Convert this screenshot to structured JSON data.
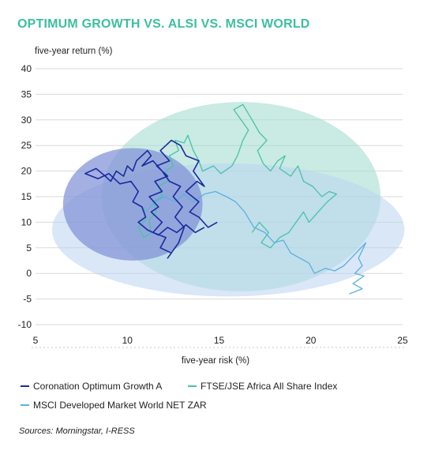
{
  "title": "OPTIMUM GROWTH VS. ALSI VS. MSCI WORLD",
  "source": "Sources: Morningstar, I-RESS",
  "chart_data": {
    "type": "scatter",
    "xlabel": "five-year risk (%)",
    "ylabel": "five-year return (%)",
    "xlim": [
      5,
      25
    ],
    "ylim": [
      -10,
      40
    ],
    "xticks": [
      5,
      10,
      15,
      20,
      25
    ],
    "yticks": [
      -10,
      -5,
      0,
      5,
      10,
      15,
      20,
      25,
      30,
      35,
      40
    ],
    "grid": "horizontal",
    "legend_position": "bottom",
    "series": [
      {
        "name": "Coronation Optimum Growth A",
        "color": "#1a2a9e",
        "ellipse": {
          "cx": 10.3,
          "cy": 13.5,
          "rx": 3.8,
          "ry": 11,
          "fill": "#7f8fd6",
          "opacity": 0.7
        },
        "points": [
          [
            14.9,
            10
          ],
          [
            14.4,
            9
          ],
          [
            13.9,
            11
          ],
          [
            13.4,
            12
          ],
          [
            13.9,
            14
          ],
          [
            13.2,
            16
          ],
          [
            13.8,
            18
          ],
          [
            14.2,
            17
          ],
          [
            13.6,
            20
          ],
          [
            13.9,
            22
          ],
          [
            13.2,
            23
          ],
          [
            12.9,
            25
          ],
          [
            12.4,
            26
          ],
          [
            11.8,
            24
          ],
          [
            12.3,
            22
          ],
          [
            11.6,
            21
          ],
          [
            12.2,
            19
          ],
          [
            11.5,
            18
          ],
          [
            11.9,
            16
          ],
          [
            11.2,
            15
          ],
          [
            11.7,
            13
          ],
          [
            11.3,
            12
          ],
          [
            11.9,
            10
          ],
          [
            11.4,
            8
          ],
          [
            12.1,
            7
          ],
          [
            11.8,
            5
          ],
          [
            12.4,
            4
          ],
          [
            12.2,
            3
          ],
          [
            12.8,
            6
          ],
          [
            13.1,
            9
          ],
          [
            12.6,
            11
          ],
          [
            13,
            13
          ],
          [
            12.5,
            15
          ],
          [
            12.9,
            17
          ],
          [
            12.3,
            18
          ],
          [
            11.9,
            20
          ],
          [
            11.4,
            22
          ],
          [
            10.8,
            21
          ],
          [
            11.3,
            23
          ],
          [
            11.1,
            24
          ],
          [
            10.5,
            22
          ],
          [
            10.3,
            20
          ],
          [
            10,
            21
          ],
          [
            9.8,
            19
          ],
          [
            9.4,
            20
          ],
          [
            9.1,
            18
          ],
          [
            8.8,
            19
          ],
          [
            8.3,
            20.5
          ],
          [
            7.7,
            19.5
          ],
          [
            8.4,
            18.5
          ],
          [
            9,
            19.5
          ],
          [
            9.6,
            17.5
          ],
          [
            10.2,
            18
          ],
          [
            10.6,
            16
          ],
          [
            10.3,
            14
          ],
          [
            10.8,
            13
          ],
          [
            11,
            11
          ],
          [
            10.6,
            10
          ],
          [
            11.1,
            8.5
          ],
          [
            11.7,
            7.5
          ],
          [
            12.2,
            9
          ],
          [
            12.7,
            8
          ],
          [
            13.2,
            9.5
          ],
          [
            13.7,
            8
          ],
          [
            14.2,
            9
          ]
        ]
      },
      {
        "name": "FTSE/JSE Africa All Share Index",
        "color": "#45c4a5",
        "ellipse": {
          "cx": 16.2,
          "cy": 15,
          "rx": 7.6,
          "ry": 18.5,
          "fill": "#a6dcd2",
          "opacity": 0.6
        },
        "points": [
          [
            10.9,
            13
          ],
          [
            11,
            10.5
          ],
          [
            10.6,
            9
          ],
          [
            10.9,
            7
          ],
          [
            11.3,
            8
          ],
          [
            11.2,
            10.5
          ],
          [
            11.6,
            12
          ],
          [
            11.4,
            14
          ],
          [
            11.9,
            15
          ],
          [
            11.7,
            17
          ],
          [
            12.2,
            18
          ],
          [
            12.1,
            20
          ],
          [
            12.5,
            21
          ],
          [
            12.3,
            23
          ],
          [
            12.8,
            24
          ],
          [
            12.6,
            26
          ],
          [
            13.1,
            25.5
          ],
          [
            13.3,
            27
          ],
          [
            13.6,
            24
          ],
          [
            13.9,
            22
          ],
          [
            14.1,
            20
          ],
          [
            14.7,
            21
          ],
          [
            15.1,
            19.5
          ],
          [
            15.7,
            21
          ],
          [
            16,
            23
          ],
          [
            16.3,
            26
          ],
          [
            16.6,
            28
          ],
          [
            16.2,
            30
          ],
          [
            15.8,
            32
          ],
          [
            16.3,
            33
          ],
          [
            16.8,
            30
          ],
          [
            17.2,
            27.5
          ],
          [
            17.6,
            26
          ],
          [
            17.1,
            24
          ],
          [
            17.4,
            21.5
          ],
          [
            17.8,
            20
          ],
          [
            18.2,
            22
          ],
          [
            18.6,
            23
          ],
          [
            18.3,
            20.5
          ],
          [
            18.9,
            19
          ],
          [
            19.3,
            21
          ],
          [
            19.6,
            18
          ],
          [
            20.1,
            17
          ],
          [
            20.6,
            15
          ],
          [
            21,
            16
          ],
          [
            21.4,
            15.5
          ],
          [
            20.9,
            14
          ],
          [
            20.4,
            12
          ],
          [
            19.9,
            10
          ],
          [
            19.6,
            12
          ],
          [
            19.2,
            10
          ],
          [
            18.8,
            8
          ],
          [
            18.3,
            7
          ],
          [
            17.8,
            5
          ],
          [
            17.3,
            6
          ],
          [
            17.7,
            8
          ],
          [
            17.2,
            10
          ],
          [
            16.8,
            8
          ]
        ]
      },
      {
        "name": "MSCI Developed Market World NET ZAR",
        "color": "#5ab0de",
        "ellipse": {
          "cx": 15.5,
          "cy": 8.5,
          "rx": 9.6,
          "ry": 13,
          "fill": "#b9d4f0",
          "opacity": 0.55
        },
        "points": [
          [
            11,
            12
          ],
          [
            11.5,
            14
          ],
          [
            12,
            15
          ],
          [
            12.6,
            14
          ],
          [
            13.1,
            15.5
          ],
          [
            13.6,
            14
          ],
          [
            14.2,
            15.5
          ],
          [
            14.8,
            16
          ],
          [
            15.4,
            15
          ],
          [
            15.9,
            14
          ],
          [
            16.4,
            12
          ],
          [
            16.9,
            9
          ],
          [
            17.5,
            8
          ],
          [
            18,
            6
          ],
          [
            18.5,
            6.5
          ],
          [
            18.9,
            4
          ],
          [
            19.4,
            3
          ],
          [
            19.9,
            2
          ],
          [
            20.2,
            0
          ],
          [
            20.8,
            1
          ],
          [
            21.3,
            0.5
          ],
          [
            21.8,
            1.5
          ],
          [
            22.2,
            3
          ],
          [
            22.6,
            4.5
          ],
          [
            23,
            6
          ],
          [
            22.6,
            3
          ],
          [
            22.8,
            1.5
          ],
          [
            22.4,
            0
          ],
          [
            22.9,
            -0.5
          ],
          [
            22.3,
            -2
          ],
          [
            22.8,
            -3
          ],
          [
            22.1,
            -4
          ]
        ]
      }
    ]
  }
}
